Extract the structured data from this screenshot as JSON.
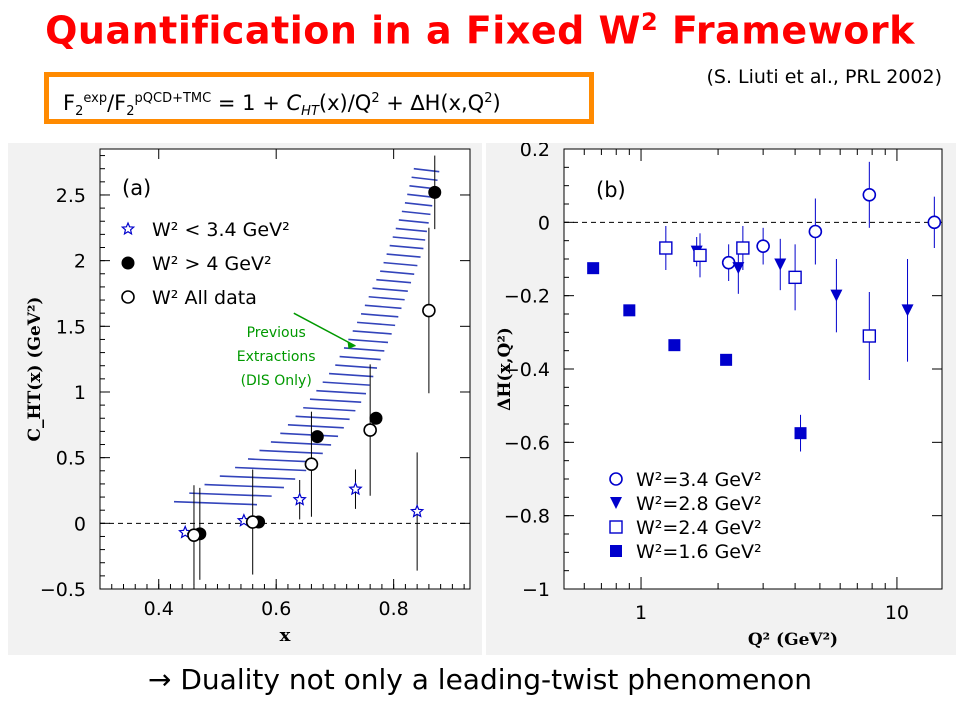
{
  "slide": {
    "title_main": "Quantification in a Fixed W",
    "title_sup": "2",
    "title_end": " Framework",
    "citation": "(S. Liuti et al., PRL 2002)",
    "formula": {
      "F": "F",
      "sub2": "2",
      "exp": "exp",
      "slashF": "/F",
      "pqcd": "pQCD+TMC",
      "eq1": " = 1 + ",
      "cht": "C",
      "ht": "HT",
      "xq": "(x)/Q",
      "sq": "2",
      "plus": " + ",
      "delta": "∆H(x,Q",
      "close": ")"
    },
    "footer": " Duality not only a leading-twist phenomenon",
    "footer_arrow": "→"
  },
  "colors": {
    "title": "#ff0000",
    "box": "#ff8a00",
    "points_b": "#0000cc",
    "hatch": "#3344bb",
    "annotation": "#009900"
  },
  "chart_data": [
    {
      "type": "scatter",
      "panel_label": "(a)",
      "xlabel": "x",
      "ylabel": "C_HT(x) (GeV²)",
      "xlim": [
        0.3,
        0.93
      ],
      "ylim": [
        -0.5,
        2.85
      ],
      "xticks": [
        "0.4",
        "0.6",
        "0.8"
      ],
      "yticks": [
        "−0.5",
        "0",
        "0.5",
        "1",
        "1.5",
        "2",
        "2.5"
      ],
      "zero_line": true,
      "annotation": [
        "Previous",
        "Extractions",
        "(DIS Only)"
      ],
      "band": {
        "label": "Previous Extractions (DIS Only)",
        "lower": [
          [
            0.38,
            -0.03
          ],
          [
            0.45,
            0.0
          ],
          [
            0.5,
            0.05
          ],
          [
            0.55,
            0.12
          ],
          [
            0.6,
            0.25
          ],
          [
            0.65,
            0.42
          ],
          [
            0.7,
            0.65
          ],
          [
            0.75,
            0.98
          ],
          [
            0.8,
            1.5
          ],
          [
            0.85,
            2.1
          ],
          [
            0.88,
            2.75
          ]
        ],
        "upper": [
          [
            0.42,
            0.15
          ],
          [
            0.48,
            0.3
          ],
          [
            0.54,
            0.45
          ],
          [
            0.6,
            0.65
          ],
          [
            0.65,
            0.9
          ],
          [
            0.7,
            1.2
          ],
          [
            0.74,
            1.55
          ],
          [
            0.78,
            1.95
          ],
          [
            0.82,
            2.45
          ],
          [
            0.84,
            2.8
          ]
        ]
      },
      "series": [
        {
          "name": "W² < 3.4 GeV²",
          "marker": "star",
          "points": [
            {
              "x": 0.445,
              "y": -0.07,
              "err": 0.0
            },
            {
              "x": 0.545,
              "y": 0.02,
              "err": 0.0
            },
            {
              "x": 0.64,
              "y": 0.18,
              "err": 0.15
            },
            {
              "x": 0.735,
              "y": 0.26,
              "err": 0.15
            },
            {
              "x": 0.84,
              "y": 0.09,
              "err": 0.45
            }
          ]
        },
        {
          "name": "W² > 4 GeV²",
          "marker": "filled-circle",
          "points": [
            {
              "x": 0.47,
              "y": -0.08,
              "err": 0.35
            },
            {
              "x": 0.57,
              "y": 0.01,
              "err": 0.0
            },
            {
              "x": 0.67,
              "y": 0.66,
              "err": 0.0
            },
            {
              "x": 0.77,
              "y": 0.8,
              "err": 0.0
            },
            {
              "x": 0.87,
              "y": 2.52,
              "err": 0.28
            }
          ]
        },
        {
          "name": "W² All data",
          "marker": "open-circle",
          "points": [
            {
              "x": 0.46,
              "y": -0.09,
              "err": 0.38
            },
            {
              "x": 0.56,
              "y": 0.01,
              "err": 0.4
            },
            {
              "x": 0.66,
              "y": 0.45,
              "err": 0.4
            },
            {
              "x": 0.76,
              "y": 0.71,
              "err": 0.5
            },
            {
              "x": 0.86,
              "y": 1.62,
              "err": 0.63
            }
          ]
        }
      ]
    },
    {
      "type": "scatter",
      "panel_label": "(b)",
      "xlabel": "Q² (GeV²)",
      "ylabel": "ΔH(x,Q²)",
      "xscale": "log",
      "xlim": [
        0.5,
        15
      ],
      "ylim": [
        -1.0,
        0.2
      ],
      "xticks": [
        "1",
        "10"
      ],
      "yticks": [
        "0.2",
        "0",
        "−0.2",
        "−0.4",
        "−0.6",
        "−0.8",
        "−1"
      ],
      "zero_line": true,
      "legend_placement": "bottom-left",
      "series": [
        {
          "name": "W²=3.4 GeV²",
          "marker": "open-circle",
          "points": [
            {
              "x": 2.2,
              "y": -0.11,
              "err": 0.05
            },
            {
              "x": 3.0,
              "y": -0.065,
              "err": 0.05
            },
            {
              "x": 4.8,
              "y": -0.025,
              "err": 0.09
            },
            {
              "x": 7.8,
              "y": 0.075,
              "err": 0.09
            },
            {
              "x": 14.0,
              "y": 0.0,
              "err": 0.07
            }
          ]
        },
        {
          "name": "W²=2.8 GeV²",
          "marker": "filled-triangle-down",
          "points": [
            {
              "x": 1.65,
              "y": -0.08,
              "err": 0.04
            },
            {
              "x": 2.4,
              "y": -0.125,
              "err": 0.07
            },
            {
              "x": 3.5,
              "y": -0.115,
              "err": 0.07
            },
            {
              "x": 5.8,
              "y": -0.2,
              "err": 0.1
            },
            {
              "x": 11.0,
              "y": -0.24,
              "err": 0.14
            }
          ]
        },
        {
          "name": "W²=2.4 GeV²",
          "marker": "open-square",
          "points": [
            {
              "x": 1.25,
              "y": -0.07,
              "err": 0.06
            },
            {
              "x": 1.7,
              "y": -0.09,
              "err": 0.06
            },
            {
              "x": 2.5,
              "y": -0.07,
              "err": 0.06
            },
            {
              "x": 4.0,
              "y": -0.15,
              "err": 0.09
            },
            {
              "x": 7.8,
              "y": -0.31,
              "err": 0.12
            }
          ]
        },
        {
          "name": "W²=1.6 GeV²",
          "marker": "filled-square",
          "points": [
            {
              "x": 0.65,
              "y": -0.125,
              "err": 0.0
            },
            {
              "x": 0.9,
              "y": -0.24,
              "err": 0.0
            },
            {
              "x": 1.35,
              "y": -0.335,
              "err": 0.0
            },
            {
              "x": 2.15,
              "y": -0.375,
              "err": 0.0
            },
            {
              "x": 4.2,
              "y": -0.575,
              "err": 0.05
            }
          ]
        }
      ]
    }
  ]
}
